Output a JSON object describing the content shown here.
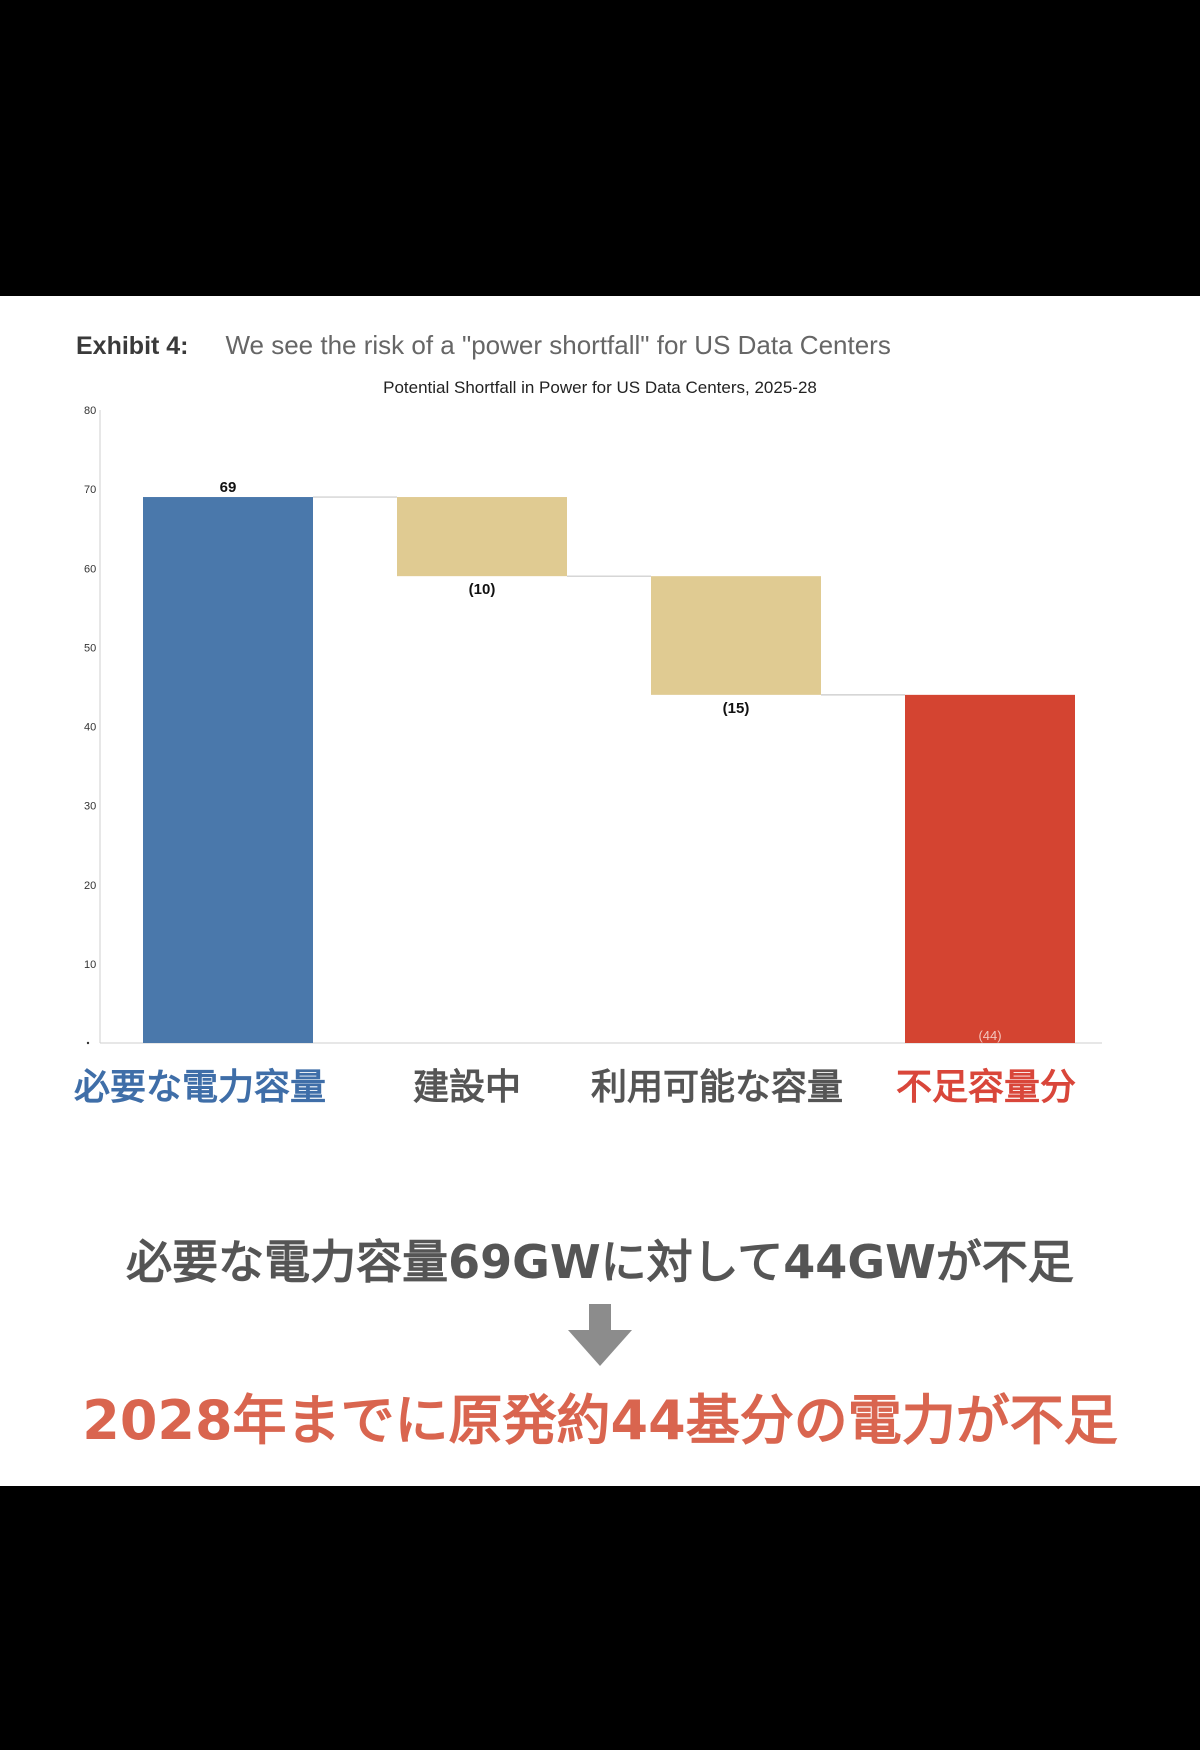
{
  "header": {
    "exhibit_label": "Exhibit 4:",
    "headline": "We see the risk of a \"power shortfall\" for US Data Centers"
  },
  "chart_data": {
    "type": "bar",
    "subtype": "waterfall",
    "title": "Potential Shortfall in Power for US Data Centers, 2025-28",
    "categories": [
      "必要な電力容量",
      "建設中",
      "利用可能な容量",
      "不足容量分"
    ],
    "values": [
      69,
      -10,
      -15,
      44
    ],
    "data_labels": [
      "69",
      "(10)",
      "(15)",
      "(44)"
    ],
    "ylim": [
      0,
      80
    ],
    "yticks": [
      0,
      10,
      20,
      30,
      40,
      50,
      60,
      70,
      80
    ],
    "ytick_labels": [
      "",
      "10",
      "20",
      "30",
      "40",
      "50",
      "60",
      "70",
      "80"
    ],
    "grid": false,
    "colors": [
      "#4a78ab",
      "#e0cb92",
      "#e0cb92",
      "#d44431"
    ],
    "category_label_colors": [
      "#3f6ea8",
      "#555555",
      "#555555",
      "#d9463a"
    ]
  },
  "summary": "必要な電力容量69GWに対して44GWが不足",
  "conclusion": "2028年までに原発約44基分の電力が不足",
  "colors": {
    "background": "#000000",
    "panel": "#ffffff",
    "arrow": "#8c8c8c",
    "summary_text": "#555555",
    "conclusion_text": "#d9654f"
  }
}
